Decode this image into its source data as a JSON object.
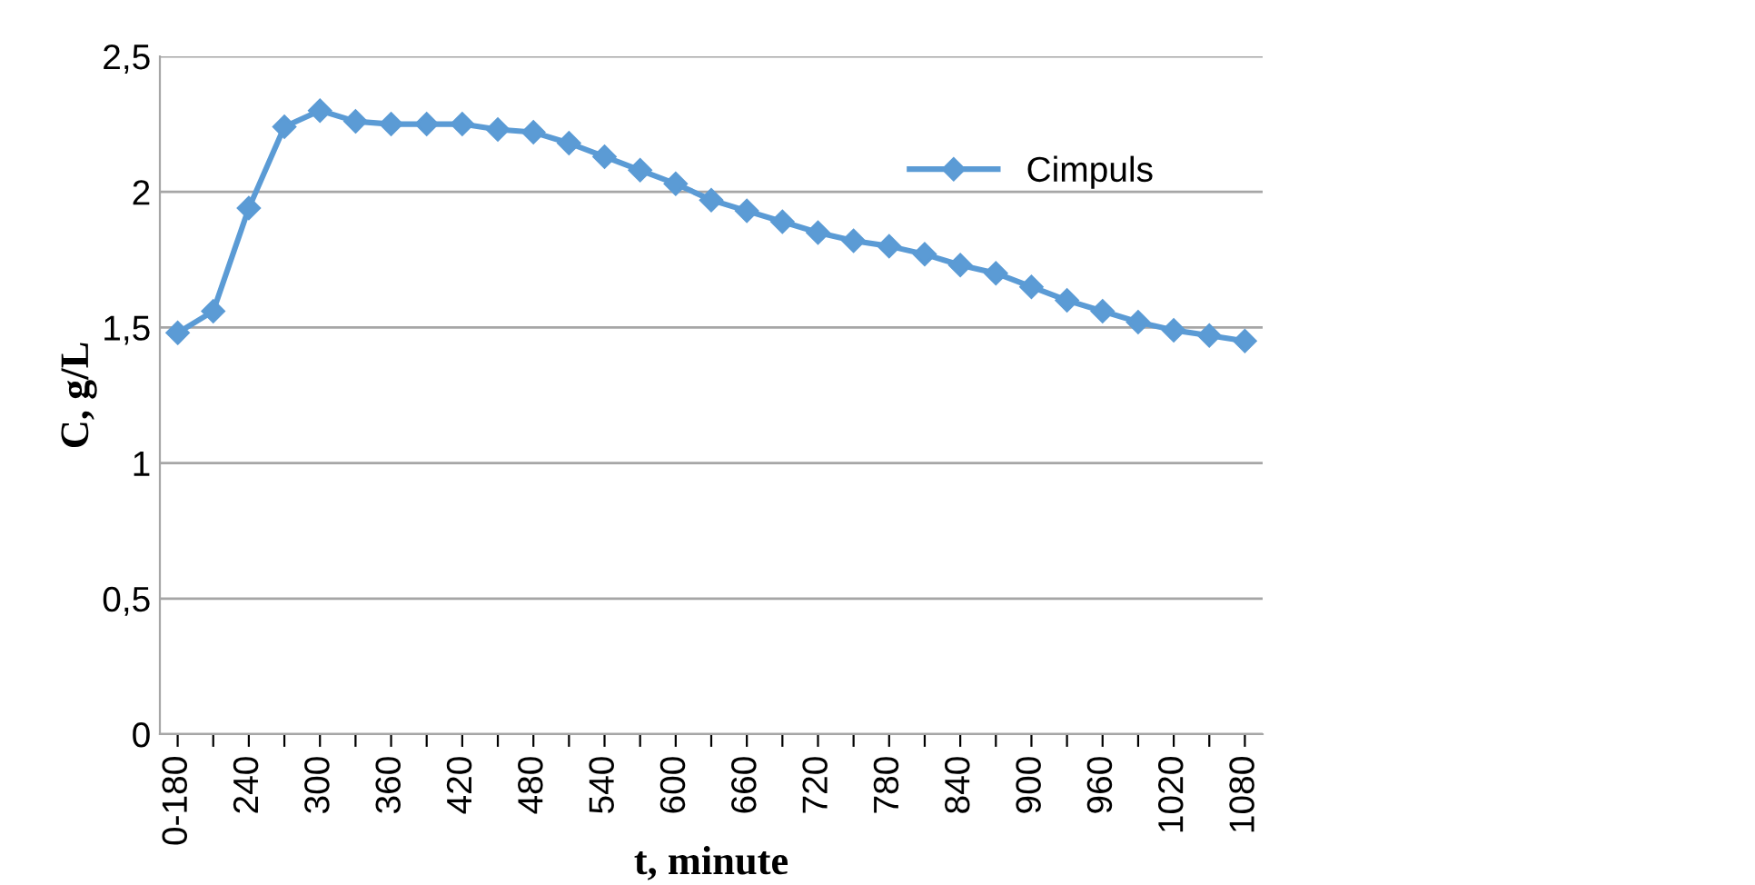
{
  "chart_data": {
    "type": "line",
    "xlabel": "t, minute",
    "ylabel": "C, g/L",
    "categories": [
      "0-180",
      null,
      "240",
      null,
      "300",
      null,
      "360",
      null,
      "420",
      null,
      "480",
      null,
      "540",
      null,
      "600",
      null,
      "660",
      null,
      "720",
      null,
      "780",
      null,
      "840",
      null,
      "900",
      null,
      "960",
      null,
      "1020",
      null,
      "1080"
    ],
    "series": [
      {
        "name": "Cimpuls",
        "color": "#5b9bd5",
        "values": [
          1.48,
          1.56,
          1.94,
          2.24,
          2.3,
          2.26,
          2.25,
          2.25,
          2.25,
          2.23,
          2.22,
          2.18,
          2.13,
          2.08,
          2.03,
          1.97,
          1.93,
          1.89,
          1.85,
          1.82,
          1.8,
          1.77,
          1.73,
          1.7,
          1.65,
          1.6,
          1.56,
          1.52,
          1.49,
          1.47,
          1.45
        ]
      }
    ],
    "ylim": [
      0,
      2.5
    ],
    "yticks": [
      0,
      {
        "value": 0.5,
        "label": "0,5"
      },
      1,
      {
        "value": 1.5,
        "label": "1,5"
      },
      2,
      {
        "value": 2.5,
        "label": "2,5"
      }
    ],
    "grid": "y",
    "legend": "top right",
    "marker": "diamond",
    "line_style": "solid"
  }
}
